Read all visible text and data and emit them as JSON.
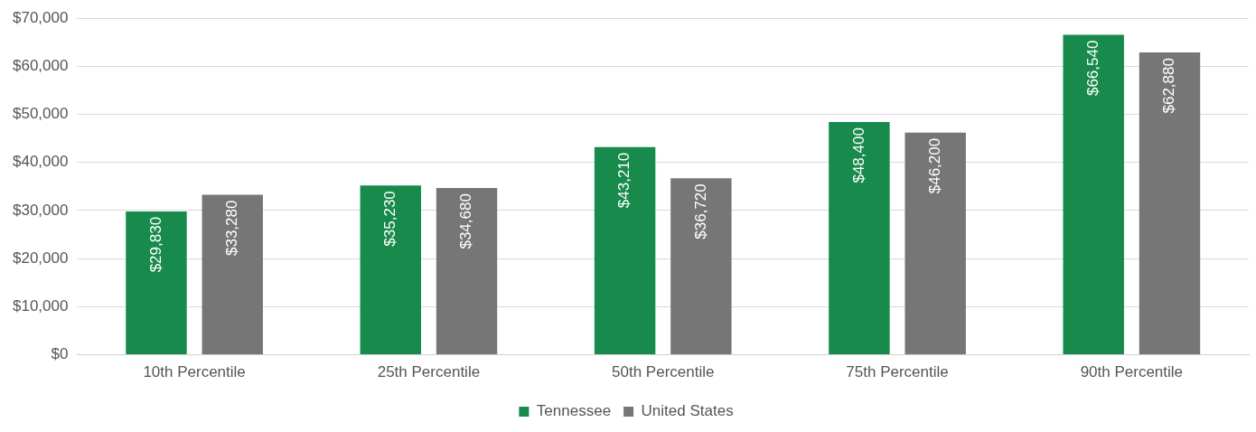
{
  "chart_data": {
    "type": "bar",
    "categories": [
      "10th Percentile",
      "25th Percentile",
      "50th Percentile",
      "75th Percentile",
      "90th Percentile"
    ],
    "series": [
      {
        "name": "Tennessee",
        "color": "#178a4c",
        "values": [
          29830,
          35230,
          43210,
          48400,
          66540
        ],
        "value_labels": [
          "$29,830",
          "$35,230",
          "$43,210",
          "$48,400",
          "$66,540"
        ]
      },
      {
        "name": "United States",
        "color": "#767676",
        "values": [
          33280,
          34680,
          36720,
          46200,
          62880
        ],
        "value_labels": [
          "$33,280",
          "$34,680",
          "$36,720",
          "$46,200",
          "$62,880"
        ]
      }
    ],
    "ylim": [
      0,
      70000
    ],
    "yticks": [
      {
        "value": 0,
        "label": "$0"
      },
      {
        "value": 10000,
        "label": "$10,000"
      },
      {
        "value": 20000,
        "label": "$20,000"
      },
      {
        "value": 30000,
        "label": "$30,000"
      },
      {
        "value": 40000,
        "label": "$40,000"
      },
      {
        "value": 50000,
        "label": "$50,000"
      },
      {
        "value": 60000,
        "label": "$60,000"
      },
      {
        "value": 70000,
        "label": "$70,000"
      }
    ],
    "grid": "y",
    "legend": "bottom"
  }
}
